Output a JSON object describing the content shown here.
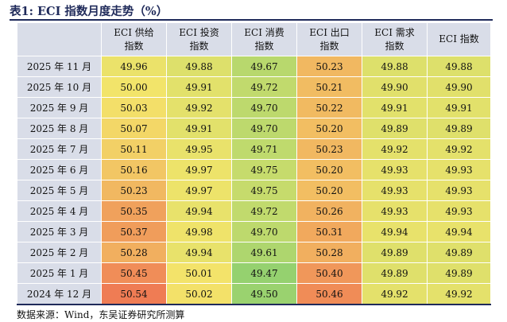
{
  "title": "表1:  ECI 指数月度走势（%）",
  "columns": [
    {
      "line1": "ECI 供给",
      "line2": "指数"
    },
    {
      "line1": "ECI 投资",
      "line2": "指数"
    },
    {
      "line1": "ECI 消费",
      "line2": "指数"
    },
    {
      "line1": "ECI 出口",
      "line2": "指数"
    },
    {
      "line1": "ECI 需求",
      "line2": "指数"
    },
    {
      "line1": "ECI 指数",
      "line2": ""
    }
  ],
  "rows": [
    {
      "month": "2025 年 11 月",
      "values": [
        "49.96",
        "49.88",
        "49.67",
        "50.23",
        "49.88",
        "49.88"
      ]
    },
    {
      "month": "2025 年 10 月",
      "values": [
        "50.00",
        "49.91",
        "49.72",
        "50.21",
        "49.90",
        "49.90"
      ]
    },
    {
      "month": "2025 年 9 月",
      "values": [
        "50.03",
        "49.92",
        "49.70",
        "50.22",
        "49.91",
        "49.91"
      ]
    },
    {
      "month": "2025 年 8 月",
      "values": [
        "50.07",
        "49.91",
        "49.70",
        "50.20",
        "49.89",
        "49.89"
      ]
    },
    {
      "month": "2025 年 7 月",
      "values": [
        "50.11",
        "49.95",
        "49.71",
        "50.23",
        "49.92",
        "49.92"
      ]
    },
    {
      "month": "2025 年 6 月",
      "values": [
        "50.16",
        "49.97",
        "49.75",
        "50.20",
        "49.93",
        "49.93"
      ]
    },
    {
      "month": "2025 年 5 月",
      "values": [
        "50.23",
        "49.97",
        "49.75",
        "50.20",
        "49.93",
        "49.93"
      ]
    },
    {
      "month": "2025 年 4 月",
      "values": [
        "50.35",
        "49.94",
        "49.72",
        "50.26",
        "49.93",
        "49.93"
      ]
    },
    {
      "month": "2025 年 3 月",
      "values": [
        "50.37",
        "49.98",
        "49.70",
        "50.31",
        "49.94",
        "49.94"
      ]
    },
    {
      "month": "2025 年 2 月",
      "values": [
        "50.28",
        "49.94",
        "49.61",
        "50.28",
        "49.89",
        "49.89"
      ]
    },
    {
      "month": "2025 年 1 月",
      "values": [
        "50.45",
        "50.01",
        "49.47",
        "50.40",
        "49.89",
        "49.89"
      ]
    },
    {
      "month": "2024 年 12 月",
      "values": [
        "50.54",
        "50.02",
        "49.50",
        "50.46",
        "49.92",
        "49.92"
      ]
    }
  ],
  "heatmap": {
    "low": "#95d16f",
    "mid": "#f3e46a",
    "high": "#ef7c54"
  },
  "source": "数据来源：Wind，东吴证券研究所测算"
}
